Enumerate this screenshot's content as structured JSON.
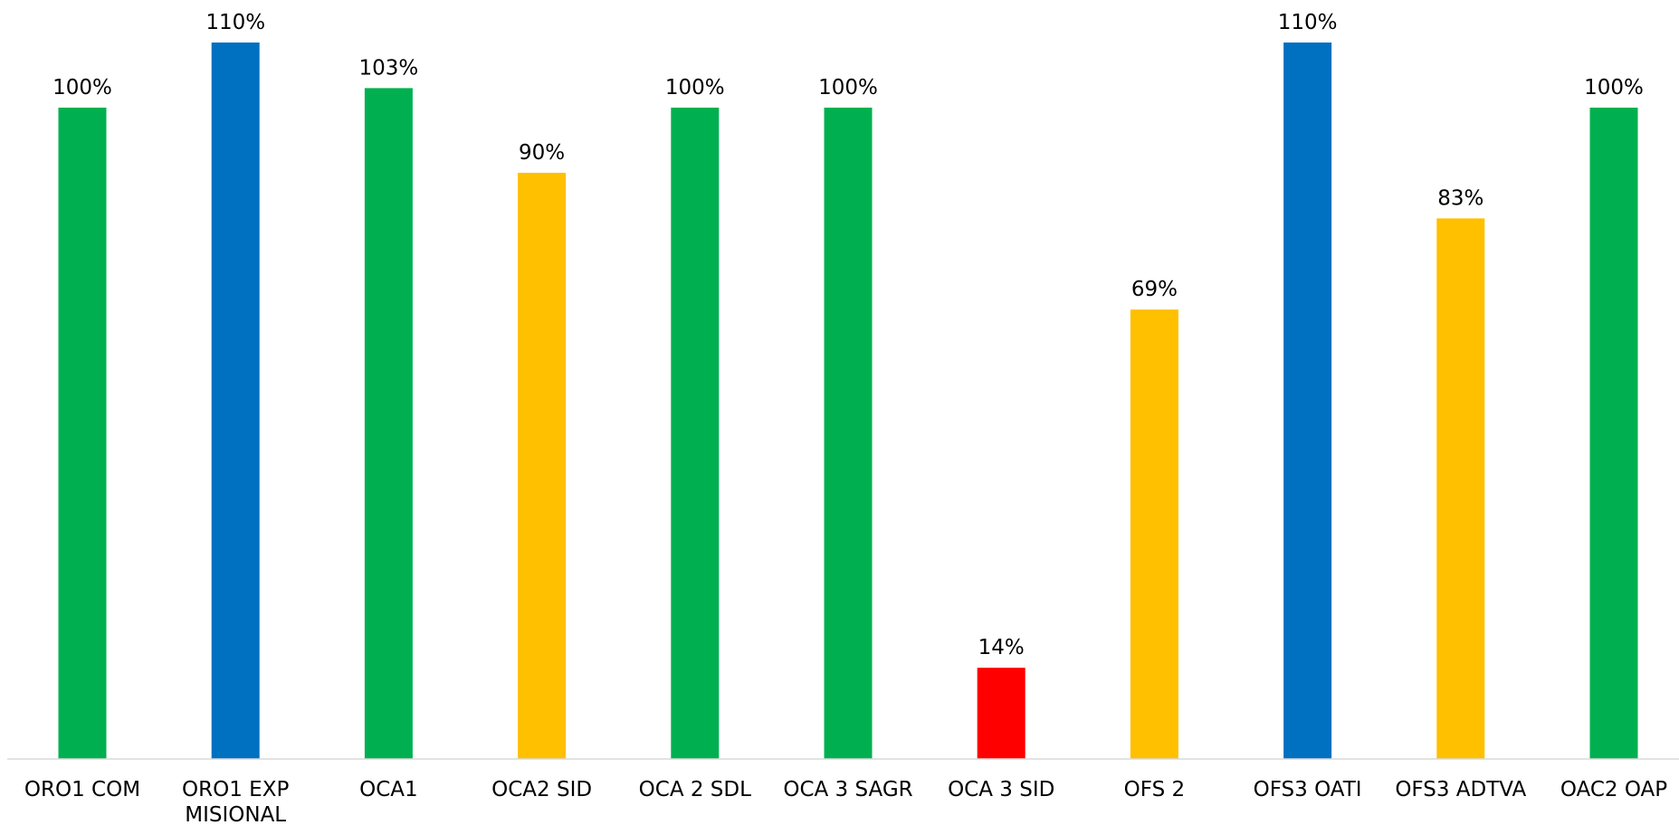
{
  "chart_data": {
    "type": "bar",
    "title": "",
    "xlabel": "",
    "ylabel": "",
    "ylim": [
      0,
      110
    ],
    "grid": false,
    "legend": "none",
    "categories": [
      [
        "ORO1 COM"
      ],
      [
        "ORO1 EXP",
        "MISIONAL"
      ],
      [
        "OCA1"
      ],
      [
        "OCA2 SID"
      ],
      [
        "OCA 2 SDL"
      ],
      [
        "OCA 3 SAGR"
      ],
      [
        "OCA 3 SID"
      ],
      [
        "OFS 2"
      ],
      [
        "OFS3 OATI"
      ],
      [
        "OFS3 ADTVA"
      ],
      [
        "OAC2 OAP"
      ]
    ],
    "values": [
      100,
      110,
      103,
      90,
      100,
      100,
      14,
      69,
      110,
      83,
      100
    ],
    "value_labels": [
      "100%",
      "110%",
      "103%",
      "90%",
      "100%",
      "100%",
      "14%",
      "69%",
      "110%",
      "83%",
      "100%"
    ],
    "colors": [
      "#00b050",
      "#0070c0",
      "#00b050",
      "#ffc000",
      "#00b050",
      "#00b050",
      "#ff0000",
      "#ffc000",
      "#0070c0",
      "#ffc000",
      "#00b050"
    ]
  }
}
